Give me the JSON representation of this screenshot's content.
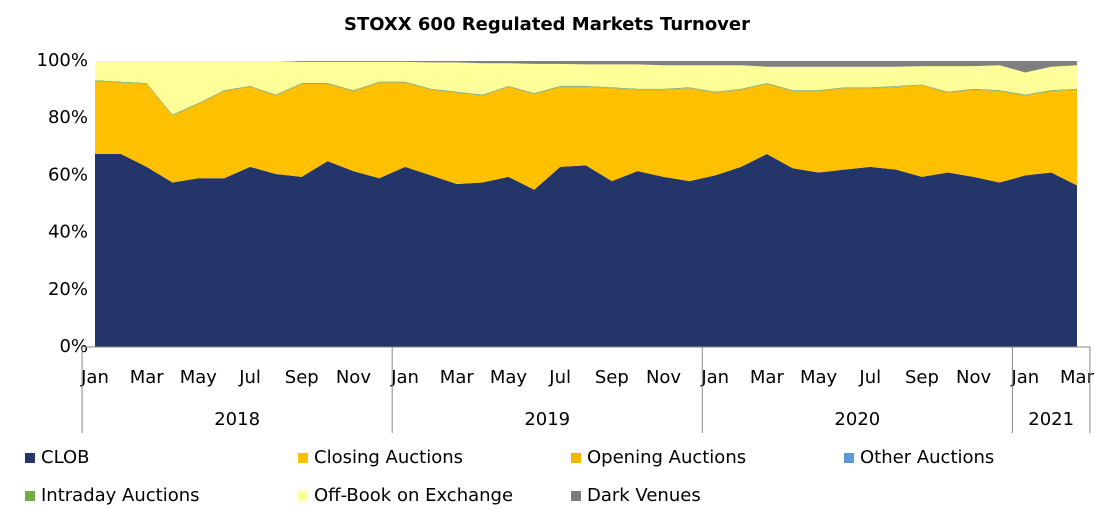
{
  "chart_data": {
    "type": "stacked_area",
    "title": "STOXX 600 Regulated Markets Turnover",
    "categories": [
      "Jan",
      null,
      "Mar",
      null,
      "May",
      null,
      "Jul",
      null,
      "Sep",
      null,
      "Nov",
      null,
      "Jan",
      null,
      "Mar",
      null,
      "May",
      null,
      "Jul",
      null,
      "Sep",
      null,
      "Nov",
      null,
      "Jan",
      null,
      "Mar",
      null,
      "May",
      null,
      "Jul",
      null,
      "Sep",
      null,
      "Nov",
      null,
      "Jan",
      null,
      "Mar"
    ],
    "groups": [
      {
        "label": "2018",
        "span": 12
      },
      {
        "label": "2019",
        "span": 12
      },
      {
        "label": "2020",
        "span": 12
      },
      {
        "label": "2021",
        "span": 3
      }
    ],
    "ylim": [
      0,
      100
    ],
    "yticks": [
      {
        "value": 0,
        "label": "0%"
      },
      {
        "value": 20,
        "label": "20%"
      },
      {
        "value": 40,
        "label": "40%"
      },
      {
        "value": 60,
        "label": "60%"
      },
      {
        "value": 80,
        "label": "80%"
      },
      {
        "value": 100,
        "label": "100%"
      }
    ],
    "grid": false,
    "legend": "bottom",
    "series": [
      {
        "name": "CLOB",
        "color": "#243569",
        "values": [
          67.5,
          67.5,
          63,
          57.5,
          59,
          59,
          63,
          60.5,
          59.5,
          65,
          61.5,
          59,
          63,
          60,
          57,
          57.5,
          59.5,
          55,
          63,
          63.5,
          58,
          61.5,
          59.5,
          58,
          60,
          63,
          67.5,
          62.5,
          61,
          62,
          63,
          62,
          59.5,
          61,
          59.5,
          57.5,
          60,
          61,
          56.5
        ]
      },
      {
        "name": "Closing Auctions",
        "color": "#ffc000",
        "values": [
          25,
          24.5,
          28.5,
          23,
          25.5,
          30,
          27.5,
          27,
          32,
          26.5,
          27.5,
          33,
          29,
          29.5,
          31.5,
          30,
          31,
          33,
          27.5,
          27,
          32,
          28,
          30,
          32,
          28.5,
          26.5,
          24,
          26.5,
          28,
          28,
          27,
          28.5,
          31.5,
          27.5,
          30,
          31.5,
          27.5,
          28,
          33
        ]
      },
      {
        "name": "Opening Auctions",
        "color": "#f2b800",
        "values": [
          0.5,
          0.5,
          0.5,
          0.5,
          0.5,
          0.5,
          0.5,
          0.5,
          0.5,
          0.5,
          0.5,
          0.5,
          0.5,
          0.5,
          0.5,
          0.5,
          0.5,
          0.5,
          0.5,
          0.5,
          0.5,
          0.5,
          0.5,
          0.5,
          0.5,
          0.5,
          0.5,
          0.5,
          0.5,
          0.5,
          0.5,
          0.5,
          0.5,
          0.5,
          0.5,
          0.5,
          0.5,
          0.5,
          0.5
        ]
      },
      {
        "name": "Other Auctions",
        "color": "#5b9bd5",
        "values": [
          0.1,
          0.1,
          0.1,
          0.1,
          0.1,
          0.1,
          0.1,
          0.1,
          0.1,
          0.1,
          0.1,
          0.1,
          0.1,
          0.1,
          0.1,
          0.1,
          0.1,
          0.1,
          0.1,
          0.1,
          0.1,
          0.1,
          0.1,
          0.1,
          0.1,
          0.1,
          0.1,
          0.1,
          0.1,
          0.1,
          0.1,
          0.1,
          0.1,
          0.1,
          0.1,
          0.1,
          0.1,
          0.1,
          0.1
        ]
      },
      {
        "name": "Intraday Auctions",
        "color": "#70ad47",
        "values": [
          0.2,
          0.2,
          0.2,
          0.2,
          0.2,
          0.2,
          0.2,
          0.2,
          0.2,
          0.2,
          0.2,
          0.2,
          0.2,
          0.2,
          0.2,
          0.2,
          0.2,
          0.2,
          0.2,
          0.2,
          0.2,
          0.2,
          0.2,
          0.2,
          0.2,
          0.2,
          0.2,
          0.2,
          0.2,
          0.2,
          0.2,
          0.2,
          0.2,
          0.2,
          0.2,
          0.2,
          0.2,
          0.2,
          0.2
        ]
      },
      {
        "name": "Off-Book on Exchange",
        "color": "#ffff99",
        "values": [
          6.7,
          7.2,
          7.7,
          18.7,
          14.7,
          10.2,
          8.7,
          11.7,
          7.4,
          7.4,
          9.9,
          6.9,
          6.9,
          9.2,
          10.2,
          10.9,
          7.9,
          10.2,
          7.7,
          7.5,
          8.0,
          8.5,
          8.2,
          7.7,
          9.2,
          8.2,
          5.7,
          8.2,
          8.2,
          7.2,
          7.2,
          6.7,
          6.4,
          8.9,
          7.9,
          8.7,
          7.7,
          8.2,
          8.2
        ]
      },
      {
        "name": "Dark Venues",
        "color": "#7f7f7f",
        "values": [
          0,
          0,
          0,
          0,
          0,
          0,
          0,
          0,
          0.3,
          0.3,
          0.3,
          0.3,
          0.3,
          0.5,
          0.5,
          0.8,
          0.8,
          1,
          1,
          1.2,
          1.2,
          1.2,
          1.5,
          1.5,
          1.5,
          1.5,
          2,
          2,
          2,
          2,
          2,
          2,
          1.8,
          1.8,
          1.8,
          1.5,
          4,
          2,
          1.5
        ]
      }
    ]
  }
}
